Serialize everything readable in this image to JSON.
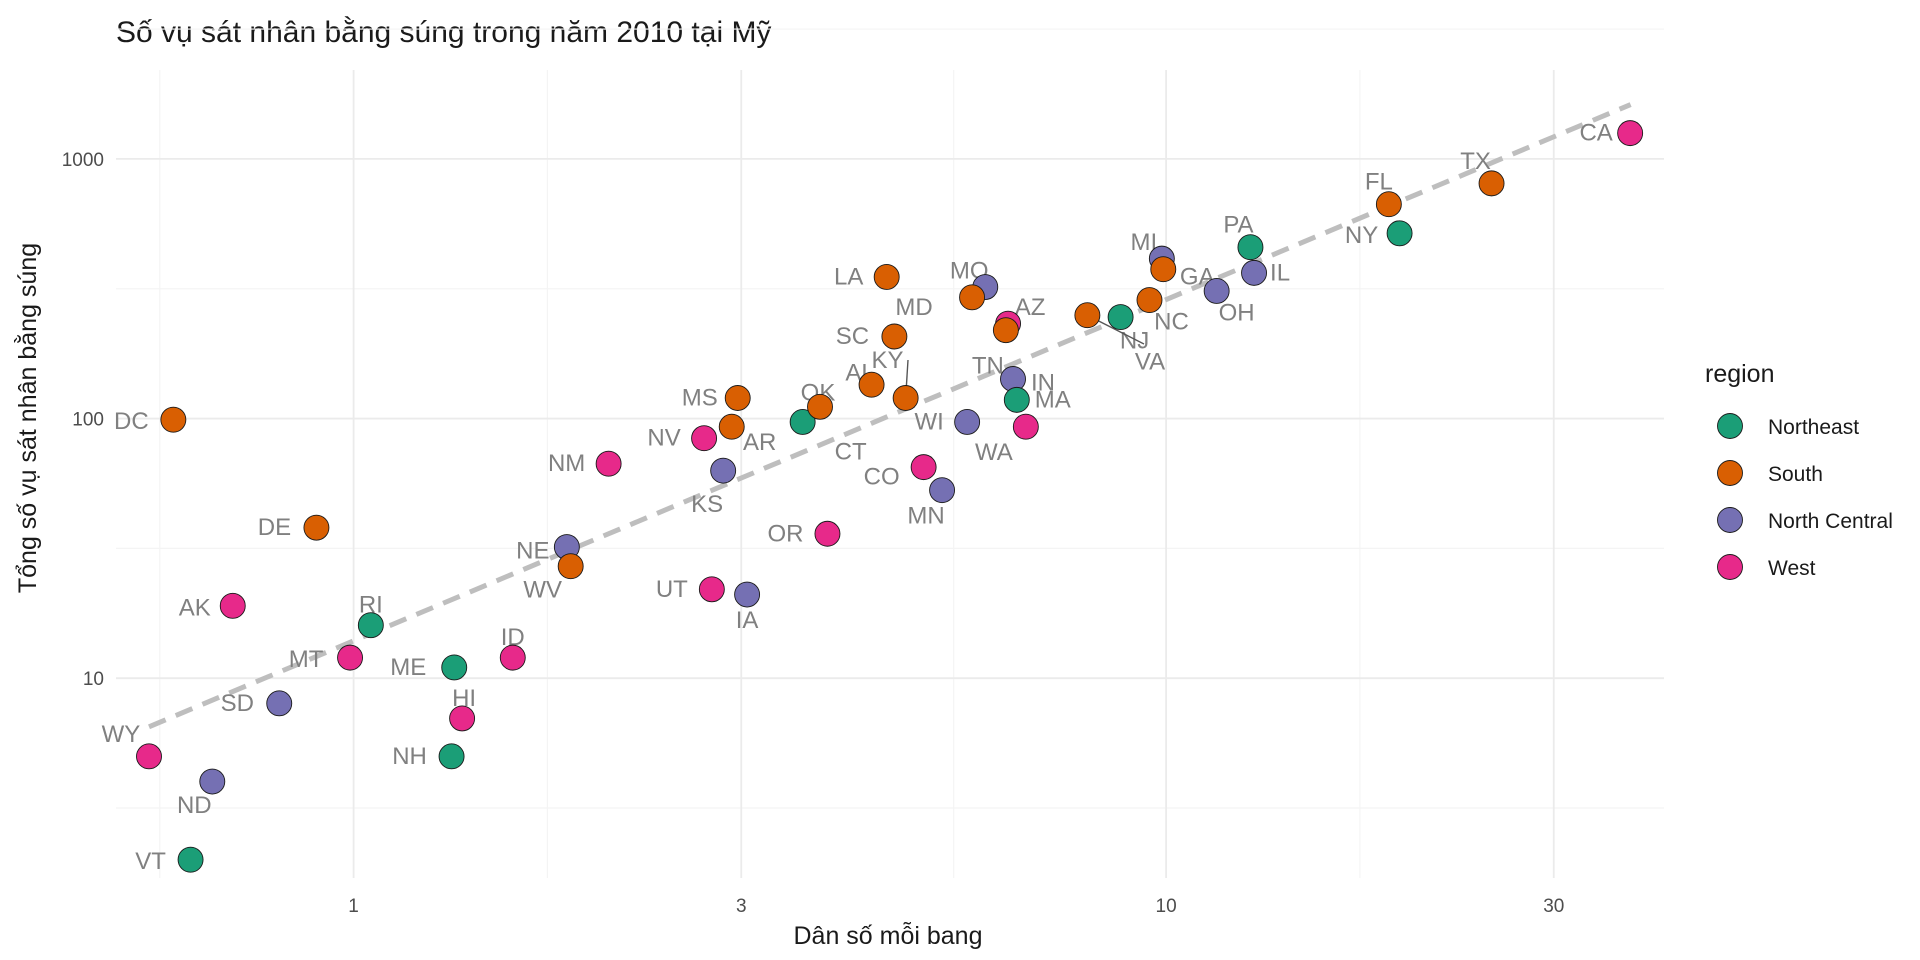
{
  "chart_data": {
    "type": "scatter",
    "title": "Số vụ sát nhân bằng súng trong năm 2010 tại Mỹ",
    "xlabel": "Dân số mỗi bang",
    "ylabel": "Tổng số vụ sát nhân bằng súng",
    "x_scale": "log10",
    "y_scale": "log10",
    "xlim": [
      0.51,
      41
    ],
    "ylim": [
      1.7,
      2200
    ],
    "x_ticks": [
      1,
      3,
      10,
      30
    ],
    "x_tick_labels": [
      "1",
      "3",
      "10",
      "30"
    ],
    "y_ticks": [
      10,
      100,
      1000
    ],
    "y_tick_labels": [
      "10",
      "100",
      "1000"
    ],
    "grid": true,
    "legend": {
      "title": "region",
      "placement": "right",
      "entries": [
        {
          "name": "Northeast",
          "color": "#1b9e77"
        },
        {
          "name": "South",
          "color": "#d95f02"
        },
        {
          "name": "North Central",
          "color": "#7570b3"
        },
        {
          "name": "West",
          "color": "#e7298a"
        }
      ]
    },
    "trend_line": {
      "style": "dashed",
      "color": "#bebebe",
      "x": [
        0.56,
        37.3
      ],
      "y": [
        6.5,
        1620
      ]
    },
    "points": [
      {
        "label": "CA",
        "x": 37.25,
        "y": 1257,
        "region": "West"
      },
      {
        "label": "TX",
        "x": 25.15,
        "y": 805,
        "region": "South"
      },
      {
        "label": "FL",
        "x": 18.8,
        "y": 669,
        "region": "South"
      },
      {
        "label": "NY",
        "x": 19.38,
        "y": 517,
        "region": "Northeast"
      },
      {
        "label": "PA",
        "x": 12.7,
        "y": 457,
        "region": "Northeast"
      },
      {
        "label": "MI",
        "x": 9.88,
        "y": 413,
        "region": "North Central"
      },
      {
        "label": "GA",
        "x": 9.92,
        "y": 376,
        "region": "South"
      },
      {
        "label": "IL",
        "x": 12.83,
        "y": 364,
        "region": "North Central"
      },
      {
        "label": "OH",
        "x": 11.54,
        "y": 310,
        "region": "North Central"
      },
      {
        "label": "NC",
        "x": 9.54,
        "y": 286,
        "region": "South"
      },
      {
        "label": "NJ",
        "x": 8.79,
        "y": 246,
        "region": "Northeast"
      },
      {
        "label": "VA",
        "x": 8.0,
        "y": 250,
        "region": "South"
      },
      {
        "label": "MO",
        "x": 5.99,
        "y": 321,
        "region": "North Central"
      },
      {
        "label": "MD",
        "x": 5.77,
        "y": 293,
        "region": "South"
      },
      {
        "label": "LA",
        "x": 4.53,
        "y": 351,
        "region": "South"
      },
      {
        "label": "AZ",
        "x": 6.39,
        "y": 232,
        "region": "West"
      },
      {
        "label": "TN",
        "x": 6.35,
        "y": 219,
        "region": "South"
      },
      {
        "label": "SC",
        "x": 4.63,
        "y": 207,
        "region": "South"
      },
      {
        "label": "KY",
        "x": 4.34,
        "y": 135,
        "region": "South"
      },
      {
        "label": "AL",
        "x": 4.78,
        "y": 120,
        "region": "South"
      },
      {
        "label": "IN",
        "x": 6.48,
        "y": 142,
        "region": "North Central"
      },
      {
        "label": "MA",
        "x": 6.55,
        "y": 118,
        "region": "Northeast"
      },
      {
        "label": "WA",
        "x": 6.72,
        "y": 93,
        "region": "West"
      },
      {
        "label": "WI",
        "x": 5.69,
        "y": 97,
        "region": "North Central"
      },
      {
        "label": "CT",
        "x": 3.57,
        "y": 97,
        "region": "Northeast"
      },
      {
        "label": "OK",
        "x": 3.75,
        "y": 111,
        "region": "South"
      },
      {
        "label": "MS",
        "x": 2.97,
        "y": 120,
        "region": "South"
      },
      {
        "label": "AR",
        "x": 2.92,
        "y": 93,
        "region": "South"
      },
      {
        "label": "NV",
        "x": 2.7,
        "y": 84,
        "region": "West"
      },
      {
        "label": "KS",
        "x": 2.85,
        "y": 63,
        "region": "North Central"
      },
      {
        "label": "CO",
        "x": 5.03,
        "y": 65,
        "region": "West"
      },
      {
        "label": "MN",
        "x": 5.3,
        "y": 53,
        "region": "North Central"
      },
      {
        "label": "OR",
        "x": 3.83,
        "y": 36,
        "region": "West"
      },
      {
        "label": "NM",
        "x": 2.06,
        "y": 67,
        "region": "West"
      },
      {
        "label": "NE",
        "x": 1.83,
        "y": 32,
        "region": "North Central"
      },
      {
        "label": "WV",
        "x": 1.85,
        "y": 27,
        "region": "South"
      },
      {
        "label": "UT",
        "x": 2.76,
        "y": 22,
        "region": "West"
      },
      {
        "label": "IA",
        "x": 3.05,
        "y": 21,
        "region": "North Central"
      },
      {
        "label": "DC",
        "x": 0.6,
        "y": 99,
        "region": "South"
      },
      {
        "label": "DE",
        "x": 0.9,
        "y": 38,
        "region": "South"
      },
      {
        "label": "AK",
        "x": 0.71,
        "y": 19,
        "region": "West"
      },
      {
        "label": "RI",
        "x": 1.05,
        "y": 16,
        "region": "Northeast"
      },
      {
        "label": "MT",
        "x": 0.99,
        "y": 12,
        "region": "West"
      },
      {
        "label": "ID",
        "x": 1.57,
        "y": 12,
        "region": "West"
      },
      {
        "label": "ME",
        "x": 1.33,
        "y": 11,
        "region": "Northeast"
      },
      {
        "label": "SD",
        "x": 0.81,
        "y": 8,
        "region": "North Central"
      },
      {
        "label": "HI",
        "x": 1.36,
        "y": 7,
        "region": "West"
      },
      {
        "label": "NH",
        "x": 1.32,
        "y": 5,
        "region": "Northeast"
      },
      {
        "label": "WY",
        "x": 0.56,
        "y": 5,
        "region": "West"
      },
      {
        "label": "ND",
        "x": 0.67,
        "y": 4,
        "region": "North Central"
      },
      {
        "label": "VT",
        "x": 0.63,
        "y": 2,
        "region": "Northeast"
      }
    ]
  }
}
